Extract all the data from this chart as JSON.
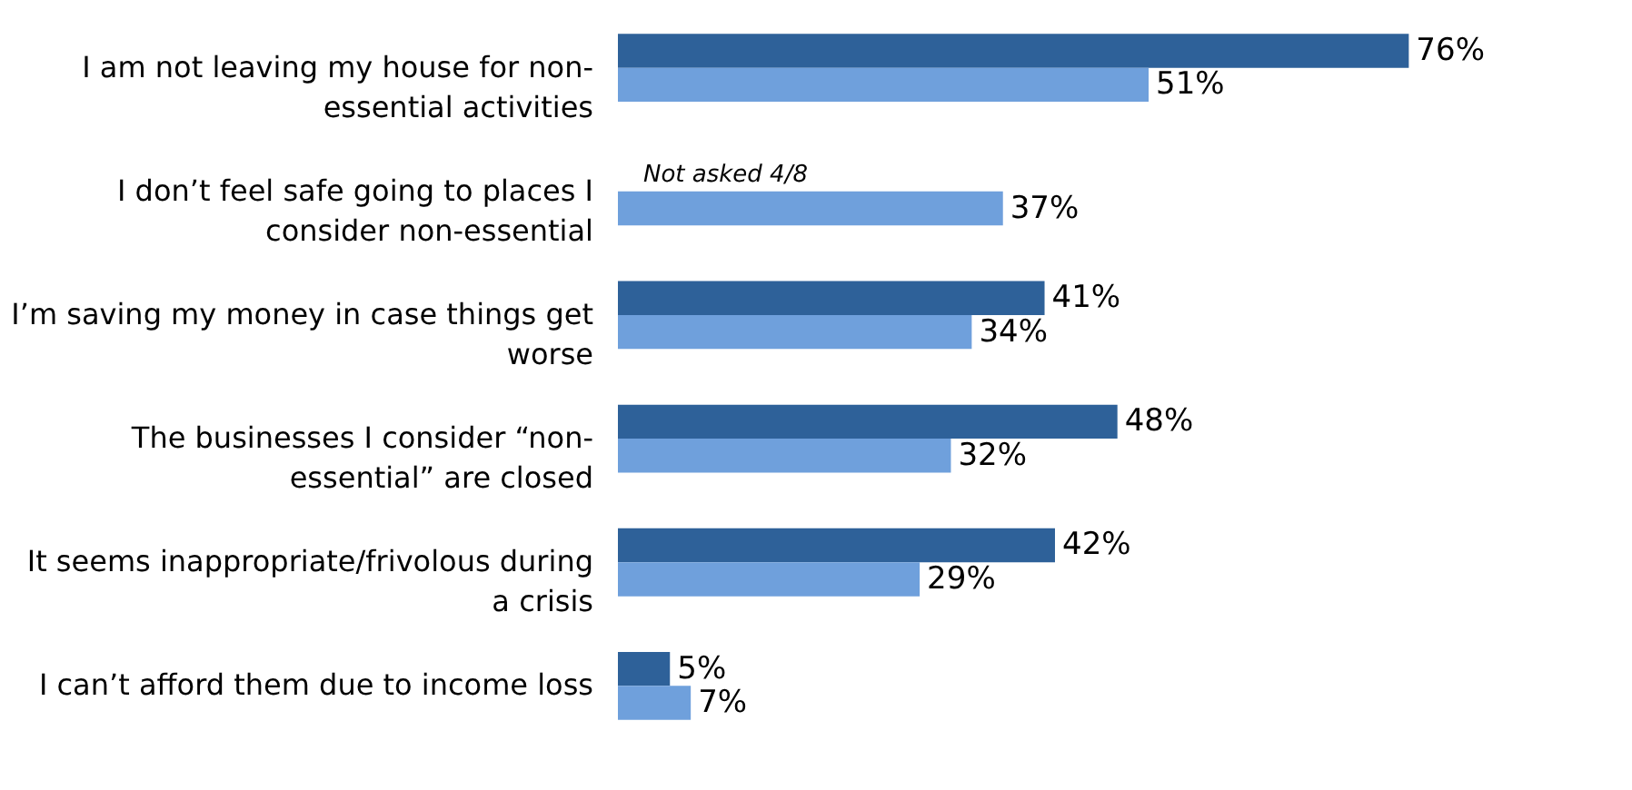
{
  "chart_data": {
    "type": "bar",
    "orientation": "horizontal",
    "categories": [
      "I am not leaving my house for non-essential activities",
      "I don’t feel safe going to places I consider non-essential",
      "I’m saving my money in case things get worse",
      "The businesses I consider “non-essential” are closed",
      "It seems inappropriate/frivolous during a crisis",
      "I can’t afford them due to income loss"
    ],
    "series": [
      {
        "color": "#2e6199",
        "values": [
          76,
          null,
          41,
          48,
          42,
          5
        ],
        "value_labels": [
          "76%",
          null,
          "41%",
          "48%",
          "42%",
          "5%"
        ]
      },
      {
        "color": "#6fa0dc",
        "values": [
          51,
          37,
          34,
          32,
          29,
          7
        ],
        "value_labels": [
          "51%",
          "37%",
          "34%",
          "32%",
          "29%",
          "7%"
        ]
      }
    ],
    "annotations": [
      "Not asked 4/8"
    ]
  }
}
